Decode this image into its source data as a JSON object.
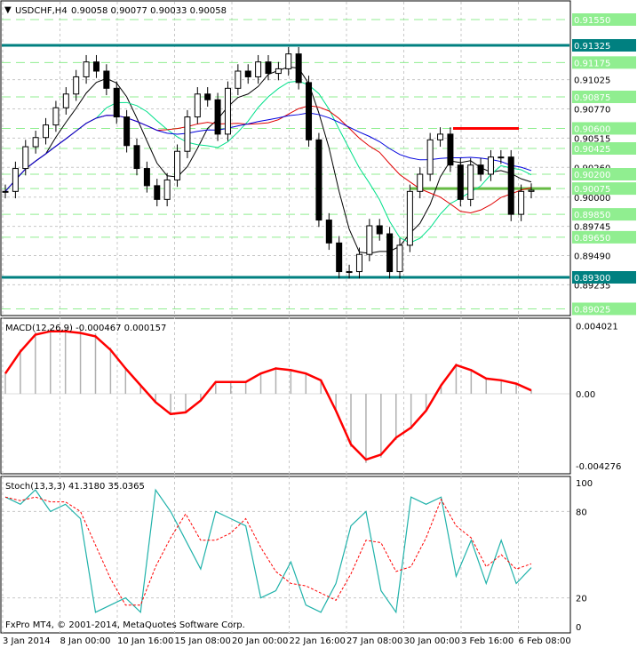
{
  "header": {
    "symbol": "USDCHF,H4",
    "ohlc": "0.90058 0.90077 0.90033 0.90058"
  },
  "footer": {
    "copyright": "FxPro MT4, © 2001-2014, MetaQuotes Software Corp."
  },
  "colors": {
    "bull": "#000000",
    "bear": "#000000",
    "level_green": "#90ee90",
    "level_teal": "#008080",
    "resistance": "#ff0000",
    "support": "#66bb44",
    "macd": "#ff0000",
    "hist": "#b0b0b0",
    "stoch_main": "#20b2aa",
    "stoch_signal": "#ff0000",
    "ma1": "#000000",
    "ma2": "#00e08a",
    "ma3": "#e00000",
    "ma4": "#0000dd"
  },
  "chart_data": [
    {
      "type": "candlestick",
      "title": "USDCHF,H4",
      "ylim": [
        0.8897,
        0.9166
      ],
      "closes": [
        0.9005,
        0.9025,
        0.9044,
        0.9052,
        0.9063,
        0.9078,
        0.909,
        0.9105,
        0.9118,
        0.911,
        0.9095,
        0.907,
        0.9045,
        0.9025,
        0.901,
        0.8998,
        0.9015,
        0.904,
        0.907,
        0.909,
        0.9085,
        0.9055,
        0.9095,
        0.911,
        0.9105,
        0.9118,
        0.9108,
        0.9112,
        0.9125,
        0.91,
        0.905,
        0.898,
        0.896,
        0.8935,
        0.8935,
        0.895,
        0.8975,
        0.8968,
        0.8935,
        0.8958,
        0.9005,
        0.902,
        0.905,
        0.9055,
        0.9028,
        0.8998,
        0.9028,
        0.902,
        0.9035,
        0.9035,
        0.8985,
        0.9005,
        0.9006
      ],
      "levels_green": [
        0.9155,
        0.91175,
        0.90875,
        0.906,
        0.90425,
        0.902,
        0.90075,
        0.8985,
        0.8965,
        0.89025
      ],
      "levels_teal": [
        0.91325,
        0.893
      ],
      "resistance": 0.906,
      "support": 0.90075,
      "ticks": [
        "0.91025",
        "0.90770",
        "0.90515",
        "0.90260",
        "0.90000",
        "0.89745",
        "0.89490",
        "0.89235"
      ],
      "x_ticks": [
        "3 Jan 2014",
        "8 Jan 00:00",
        "10 Jan 16:00",
        "15 Jan 08:00",
        "20 Jan 00:00",
        "22 Jan 16:00",
        "27 Jan 08:00",
        "30 Jan 00:00",
        "3 Feb 16:00",
        "6 Feb 08:00"
      ]
    },
    {
      "type": "line",
      "title": "MACD(12,26,9) -0.000467 0.000157",
      "ylim": [
        -0.004276,
        0.004021
      ],
      "ticks": [
        "0.004021",
        "0.00",
        "-0.004276"
      ],
      "values": [
        0.0012,
        0.0025,
        0.0035,
        0.0037,
        0.0037,
        0.0036,
        0.0034,
        0.0026,
        0.0015,
        0.0005,
        -0.0005,
        -0.0012,
        -0.0011,
        -0.0004,
        0.0007,
        0.0007,
        0.0007,
        0.0012,
        0.0015,
        0.0014,
        0.0012,
        0.0008,
        -0.001,
        -0.003,
        -0.0039,
        -0.0036,
        -0.0026,
        -0.002,
        -0.001,
        0.0005,
        0.0017,
        0.0014,
        0.0009,
        0.0008,
        0.0006,
        0.0002
      ]
    },
    {
      "type": "line",
      "title": "Stoch(13,3,3) 41.3180 35.0365",
      "ylim": [
        0,
        100
      ],
      "ticks": [
        "100",
        "80",
        "20",
        "0"
      ],
      "main": [
        90,
        85,
        95,
        80,
        85,
        75,
        10,
        15,
        20,
        10,
        95,
        80,
        60,
        40,
        80,
        75,
        70,
        20,
        25,
        45,
        15,
        10,
        30,
        70,
        80,
        25,
        10,
        90,
        85,
        90,
        35,
        60,
        30,
        60,
        30,
        41
      ]
    }
  ]
}
